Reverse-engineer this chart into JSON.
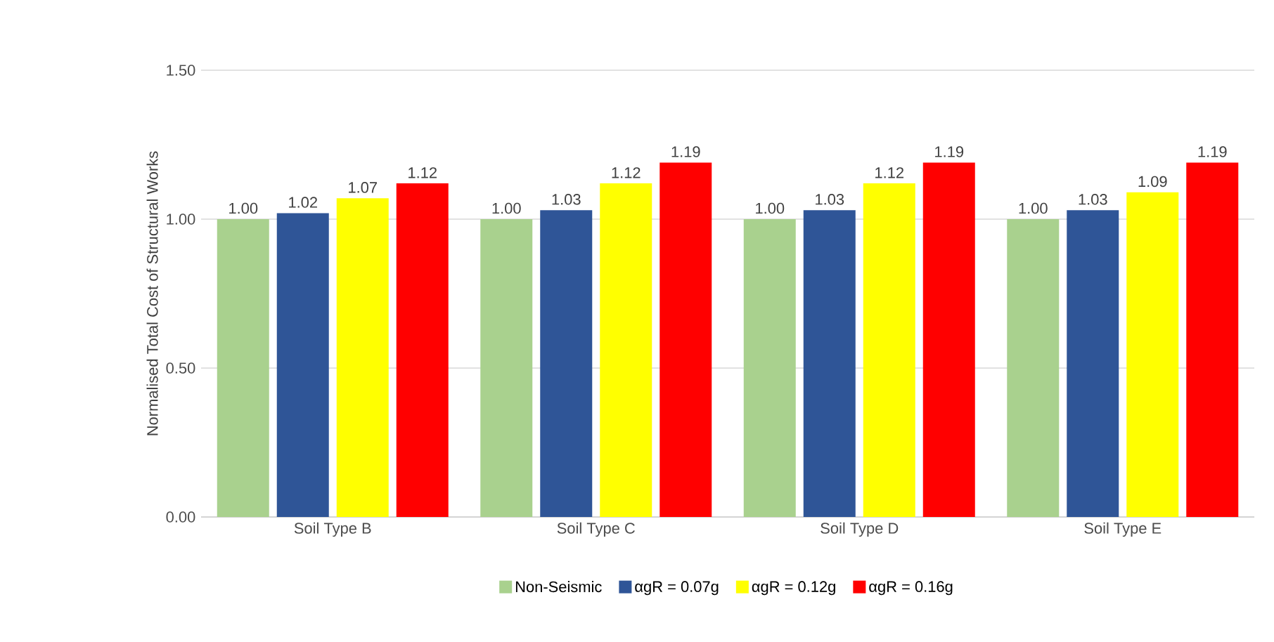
{
  "chart_data": {
    "type": "bar",
    "ylabel": "Normalised Total Cost of Structural Works",
    "categories": [
      "Soil Type B",
      "Soil Type C",
      "Soil Type D",
      "Soil Type E"
    ],
    "series": [
      {
        "name": "Non-Seismic",
        "color": "#a9d18e",
        "values": [
          1.0,
          1.0,
          1.0,
          1.0
        ],
        "value_labels": [
          "1.00",
          "1.00",
          "1.00",
          "1.00"
        ]
      },
      {
        "name": "αgR = 0.07g",
        "color": "#2f5597",
        "values": [
          1.02,
          1.03,
          1.03,
          1.03
        ],
        "value_labels": [
          "1.02",
          "1.03",
          "1.03",
          "1.03"
        ]
      },
      {
        "name": "αgR = 0.12g",
        "color": "#ffff00",
        "values": [
          1.07,
          1.12,
          1.12,
          1.09
        ],
        "value_labels": [
          "1.07",
          "1.12",
          "1.12",
          "1.09"
        ]
      },
      {
        "name": "αgR = 0.16g",
        "color": "#ff0000",
        "values": [
          1.12,
          1.19,
          1.19,
          1.19
        ],
        "value_labels": [
          "1.12",
          "1.19",
          "1.19",
          "1.19"
        ]
      }
    ],
    "ylim": [
      0,
      1.5
    ],
    "yticks": [
      {
        "value": 0,
        "label": "0.00"
      },
      {
        "value": 0.5,
        "label": "0.50"
      },
      {
        "value": 1.0,
        "label": "1.00"
      },
      {
        "value": 1.5,
        "label": "1.50"
      }
    ],
    "grid": "y",
    "legend": "bottom"
  }
}
